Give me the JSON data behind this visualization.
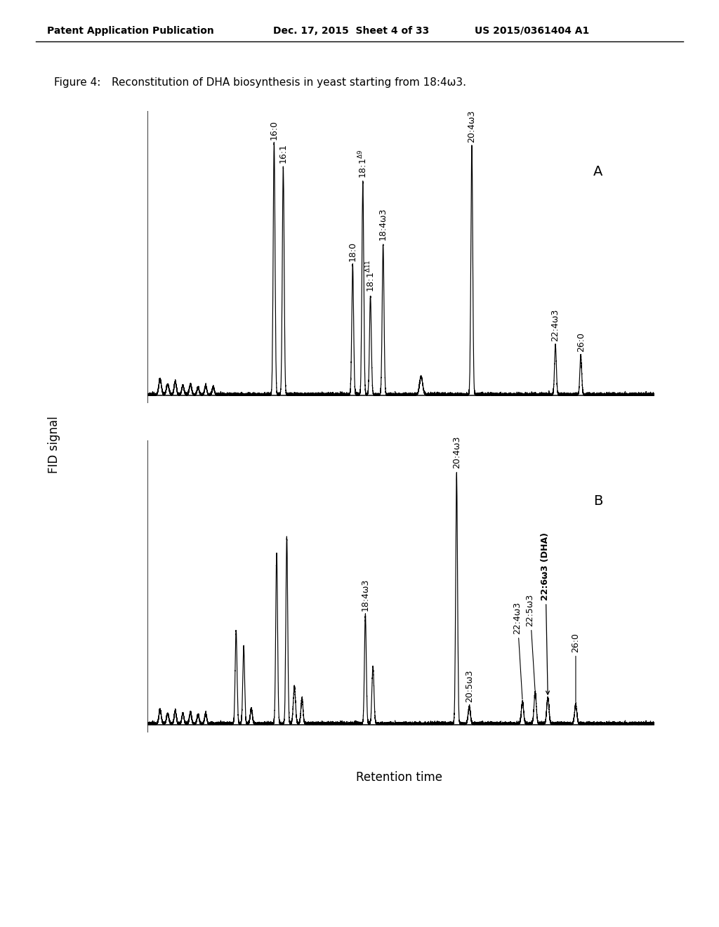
{
  "header_left": "Patent Application Publication",
  "header_mid": "Dec. 17, 2015  Sheet 4 of 33",
  "header_right": "US 2015/0361404 A1",
  "figure_caption_part1": "Figure 4:",
  "figure_caption_part2": "Reconstitution of DHA biosynthesis in yeast starting from 18:4ω3.",
  "ylabel": "FID signal",
  "xlabel": "Retention time",
  "panel_A_label": "A",
  "panel_B_label": "B",
  "background_color": "#ffffff",
  "line_color": "#000000"
}
